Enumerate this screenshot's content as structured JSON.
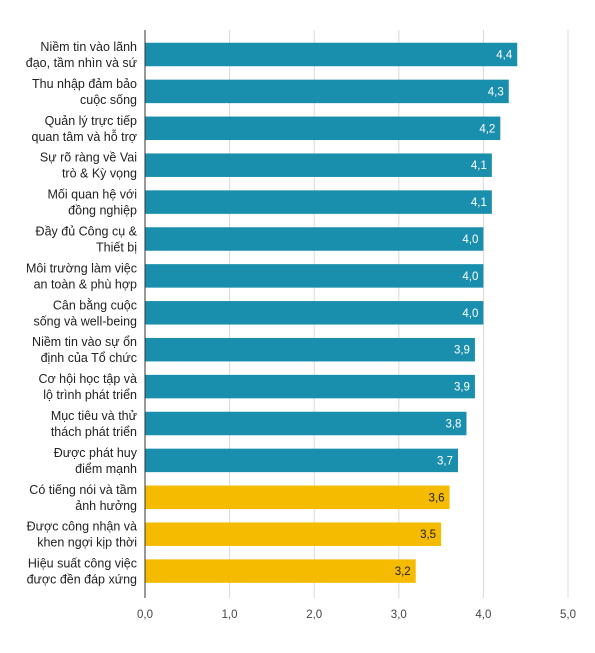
{
  "chart_data": {
    "type": "bar",
    "orientation": "horizontal",
    "categories": [
      [
        "Niềm tin vào lãnh",
        "đạo, tầm nhìn và sứ"
      ],
      [
        "Thu nhập đảm bảo",
        "cuộc sống"
      ],
      [
        "Quản lý trực tiếp",
        "quan tâm và hỗ trợ"
      ],
      [
        "Sự rõ ràng về Vai",
        "trò & Kỳ vọng"
      ],
      [
        "Mối quan hệ với",
        "đồng nghiệp"
      ],
      [
        "Đầy đủ Công cụ &",
        "Thiết bị"
      ],
      [
        "Môi trường làm việc",
        "an toàn & phù hợp"
      ],
      [
        "Cân bằng cuộc",
        "sống và well-being"
      ],
      [
        "Niềm tin vào sự ổn",
        "định của Tổ chức"
      ],
      [
        "Cơ hội học tập và",
        "lộ trình phát triển"
      ],
      [
        "Mục tiêu và thử",
        "thách phát triển"
      ],
      [
        "Được phát huy",
        "điểm mạnh"
      ],
      [
        "Có tiếng nói và tầm",
        "ảnh hưởng"
      ],
      [
        "Được công nhận và",
        "khen ngợi kịp thời"
      ],
      [
        "Hiệu suất công việc",
        "được đền đáp xứng"
      ]
    ],
    "values": [
      4.4,
      4.3,
      4.2,
      4.1,
      4.1,
      4.0,
      4.0,
      4.0,
      3.9,
      3.9,
      3.8,
      3.7,
      3.6,
      3.5,
      3.2
    ],
    "value_labels": [
      "4,4",
      "4,3",
      "4,2",
      "4,1",
      "4,1",
      "4,0",
      "4,0",
      "4,0",
      "3,9",
      "3,9",
      "3,8",
      "3,7",
      "3,6",
      "3,5",
      "3,2"
    ],
    "bar_colors": [
      "#1a8fad",
      "#1a8fad",
      "#1a8fad",
      "#1a8fad",
      "#1a8fad",
      "#1a8fad",
      "#1a8fad",
      "#1a8fad",
      "#1a8fad",
      "#1a8fad",
      "#1a8fad",
      "#1a8fad",
      "#f5bb00",
      "#f5bb00",
      "#f5bb00"
    ],
    "label_colors": [
      "#ffffff",
      "#ffffff",
      "#ffffff",
      "#ffffff",
      "#ffffff",
      "#ffffff",
      "#ffffff",
      "#ffffff",
      "#ffffff",
      "#ffffff",
      "#ffffff",
      "#ffffff",
      "#222222",
      "#222222",
      "#222222"
    ],
    "xlim": [
      0,
      5
    ],
    "xticks": [
      0,
      1,
      2,
      3,
      4,
      5
    ],
    "xtick_labels": [
      "0,0",
      "1,0",
      "2,0",
      "3,0",
      "4,0",
      "5,0"
    ],
    "grid": "vertical",
    "title": "",
    "xlabel": "",
    "ylabel": ""
  }
}
